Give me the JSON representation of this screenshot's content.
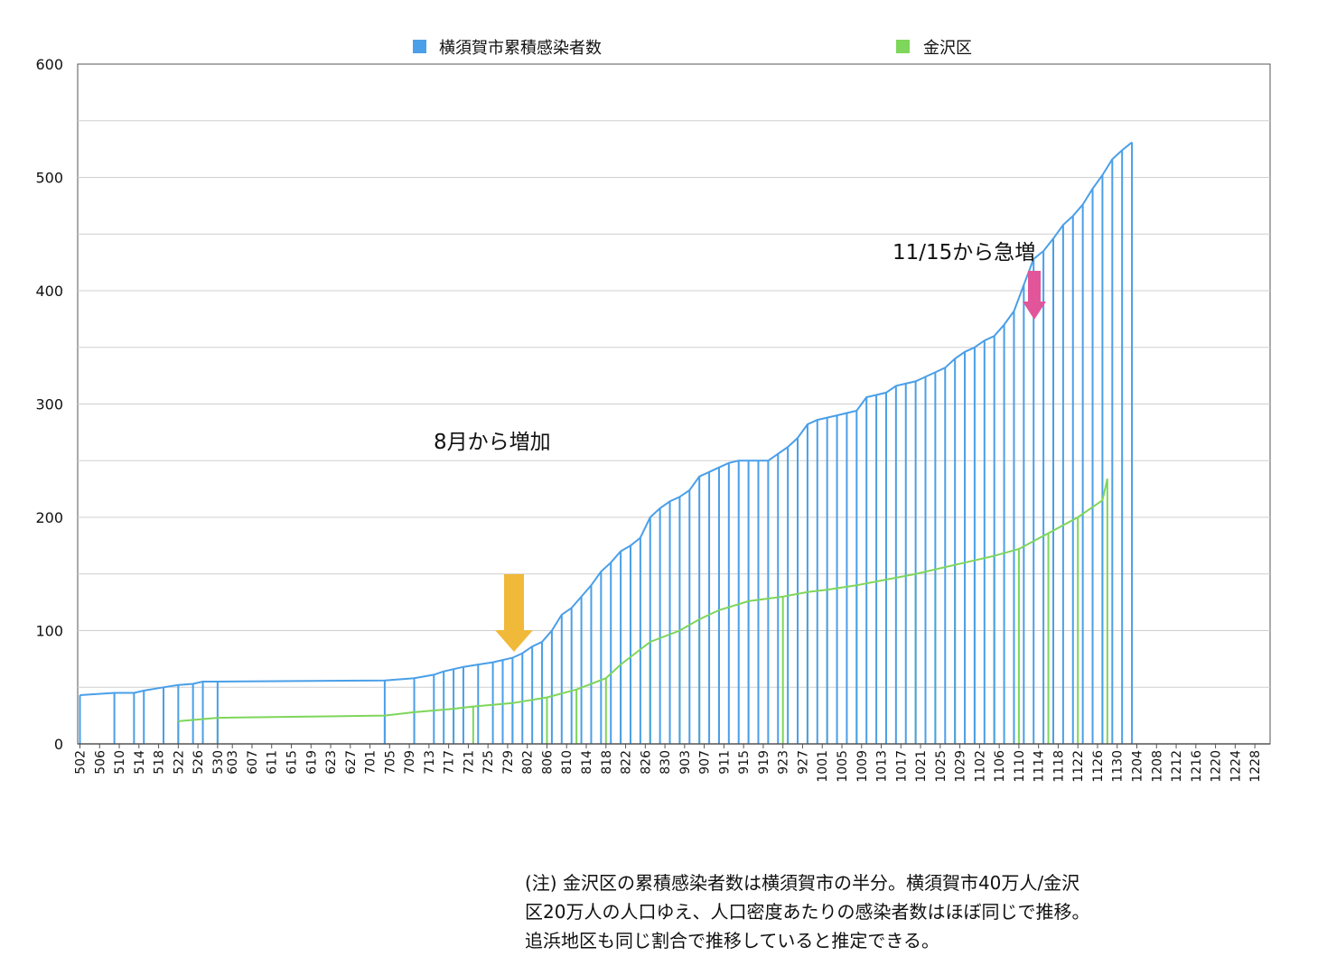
{
  "chart_data": {
    "type": "bar",
    "title": "",
    "xlabel": "",
    "ylabel": "",
    "ylim": [
      0,
      600
    ],
    "y_ticks": [
      0,
      100,
      200,
      300,
      400,
      500,
      600
    ],
    "grid": true,
    "legend_position": "top",
    "x_tick_labels": [
      "502",
      "506",
      "510",
      "514",
      "518",
      "522",
      "526",
      "530",
      "603",
      "607",
      "611",
      "615",
      "619",
      "623",
      "627",
      "701",
      "705",
      "709",
      "713",
      "717",
      "721",
      "725",
      "729",
      "802",
      "806",
      "810",
      "814",
      "818",
      "822",
      "826",
      "830",
      "903",
      "907",
      "911",
      "915",
      "919",
      "923",
      "927",
      "1001",
      "1005",
      "1009",
      "1013",
      "1017",
      "1021",
      "1025",
      "1029",
      "1102",
      "1106",
      "1110",
      "1114",
      "1118",
      "1122",
      "1126",
      "1130",
      "1204",
      "1208",
      "1212",
      "1216",
      "1220",
      "1224",
      "1228"
    ],
    "series": [
      {
        "name": "横須賀市累積感染者数",
        "color": "#4a9fe8",
        "mark": "bar-with-line",
        "points": [
          [
            "502",
            43
          ],
          [
            "509",
            45
          ],
          [
            "513",
            45
          ],
          [
            "515",
            47
          ],
          [
            "519",
            50
          ],
          [
            "522",
            52
          ],
          [
            "525",
            53
          ],
          [
            "527",
            55
          ],
          [
            "530",
            55
          ],
          [
            "704",
            56
          ],
          [
            "710",
            58
          ],
          [
            "714",
            61
          ],
          [
            "716",
            64
          ],
          [
            "718",
            66
          ],
          [
            "720",
            68
          ],
          [
            "723",
            70
          ],
          [
            "726",
            72
          ],
          [
            "728",
            74
          ],
          [
            "730",
            76
          ],
          [
            "801",
            80
          ],
          [
            "803",
            86
          ],
          [
            "805",
            90
          ],
          [
            "807",
            100
          ],
          [
            "809",
            114
          ],
          [
            "811",
            120
          ],
          [
            "813",
            130
          ],
          [
            "815",
            140
          ],
          [
            "817",
            152
          ],
          [
            "819",
            160
          ],
          [
            "821",
            170
          ],
          [
            "823",
            175
          ],
          [
            "825",
            182
          ],
          [
            "827",
            200
          ],
          [
            "829",
            208
          ],
          [
            "831",
            214
          ],
          [
            "902",
            218
          ],
          [
            "904",
            224
          ],
          [
            "906",
            236
          ],
          [
            "908",
            240
          ],
          [
            "910",
            244
          ],
          [
            "912",
            248
          ],
          [
            "914",
            250
          ],
          [
            "916",
            250
          ],
          [
            "918",
            250
          ],
          [
            "920",
            250
          ],
          [
            "922",
            256
          ],
          [
            "924",
            262
          ],
          [
            "926",
            270
          ],
          [
            "928",
            282
          ],
          [
            "930",
            286
          ],
          [
            "1002",
            288
          ],
          [
            "1004",
            290
          ],
          [
            "1006",
            292
          ],
          [
            "1008",
            294
          ],
          [
            "1010",
            306
          ],
          [
            "1012",
            308
          ],
          [
            "1014",
            310
          ],
          [
            "1016",
            316
          ],
          [
            "1018",
            318
          ],
          [
            "1020",
            320
          ],
          [
            "1022",
            324
          ],
          [
            "1024",
            328
          ],
          [
            "1026",
            332
          ],
          [
            "1028",
            340
          ],
          [
            "1030",
            346
          ],
          [
            "1101",
            350
          ],
          [
            "1103",
            356
          ],
          [
            "1105",
            360
          ],
          [
            "1107",
            370
          ],
          [
            "1109",
            382
          ],
          [
            "1111",
            405
          ],
          [
            "1113",
            428
          ],
          [
            "1115",
            435
          ],
          [
            "1117",
            446
          ],
          [
            "1119",
            458
          ],
          [
            "1121",
            466
          ],
          [
            "1123",
            476
          ],
          [
            "1125",
            490
          ],
          [
            "1127",
            502
          ],
          [
            "1129",
            516
          ],
          [
            "1201",
            524
          ],
          [
            "1203",
            531
          ]
        ]
      },
      {
        "name": "金沢区",
        "color": "#7ed65a",
        "mark": "bar-with-line",
        "points": [
          [
            "522",
            20
          ],
          [
            "530",
            23
          ],
          [
            "704",
            25
          ],
          [
            "710",
            28
          ],
          [
            "718",
            31
          ],
          [
            "722",
            33
          ],
          [
            "730",
            36
          ],
          [
            "806",
            41
          ],
          [
            "812",
            48
          ],
          [
            "818",
            58
          ],
          [
            "821",
            70
          ],
          [
            "827",
            90
          ],
          [
            "902",
            100
          ],
          [
            "906",
            110
          ],
          [
            "910",
            118
          ],
          [
            "916",
            126
          ],
          [
            "923",
            130
          ],
          [
            "928",
            134
          ],
          [
            "1002",
            136
          ],
          [
            "1008",
            140
          ],
          [
            "1014",
            145
          ],
          [
            "1020",
            150
          ],
          [
            "1024",
            154
          ],
          [
            "1028",
            158
          ],
          [
            "1101",
            162
          ],
          [
            "1105",
            166
          ],
          [
            "1110",
            172
          ],
          [
            "1116",
            186
          ],
          [
            "1122",
            200
          ],
          [
            "1127",
            215
          ],
          [
            "1128",
            234
          ]
        ]
      }
    ],
    "annotations": [
      {
        "text": "8月から増加",
        "arrow_color": "#f0b93a",
        "points_to": "729"
      },
      {
        "text": "11/15から急増",
        "arrow_color": "#e2559a",
        "points_to": "1115"
      }
    ]
  },
  "note": {
    "lines": [
      "(注) 金沢区の累積感染者数は横須賀市の半分。横須賀市40万人/金沢",
      "区20万人の人口ゆえ、人口密度あたりの感染者数はほぼ同じで推移。",
      "追浜地区も同じ割合で推移していると推定できる。"
    ]
  }
}
